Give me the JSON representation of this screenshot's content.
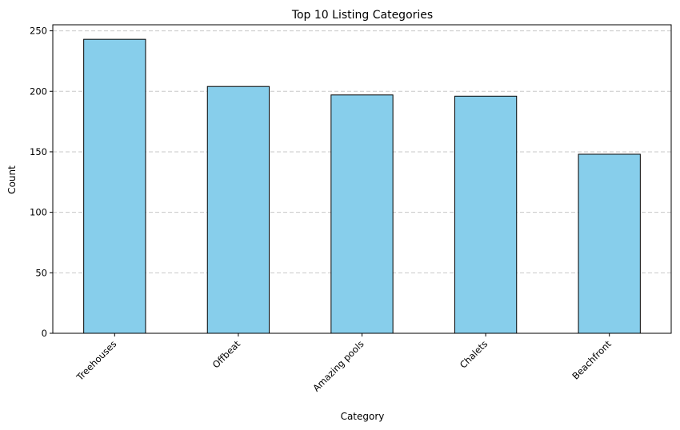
{
  "chart_data": {
    "type": "bar",
    "title": "Top 10 Listing Categories",
    "xlabel": "Category",
    "ylabel": "Count",
    "categories": [
      "Treehouses",
      "Offbeat",
      "Amazing pools",
      "Chalets",
      "Beachfront"
    ],
    "values": [
      243,
      204,
      197,
      196,
      148
    ],
    "ylim": [
      0,
      255
    ],
    "yticks": [
      0,
      50,
      100,
      150,
      200,
      250
    ],
    "grid": "y-dashed",
    "bar_color": "#87CEEB",
    "bar_edge_color": "#000000",
    "grid_color": "#c8c8c8"
  }
}
